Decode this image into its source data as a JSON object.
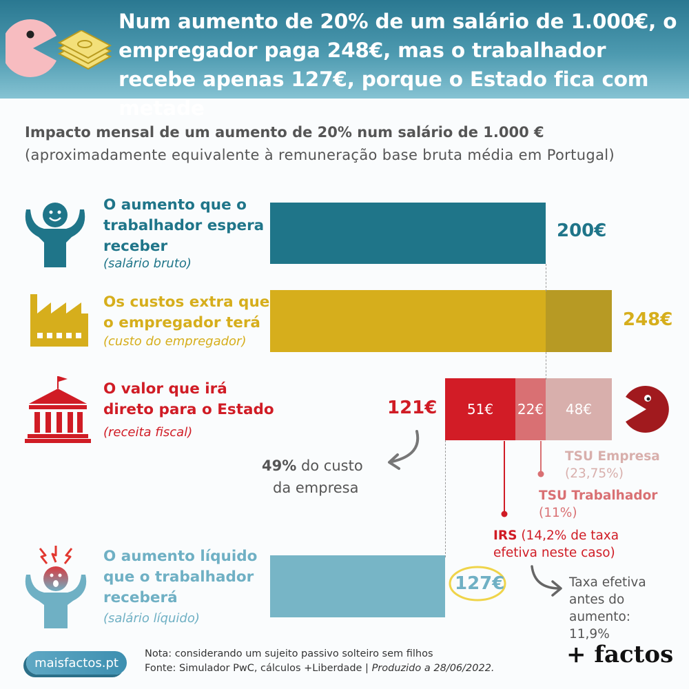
{
  "header": {
    "title": "Num aumento de 20% de um salário de 1.000€, o empregador paga 248€, mas o trabalhador recebe apenas 127€, porque o Estado fica com metade",
    "colors": {
      "from": "#2a7891",
      "to": "#86c3d3"
    }
  },
  "chart_data": {
    "type": "bar",
    "title": "Impacto mensal de um aumento de 20% num salário de 1.000 €",
    "subtitle": "(aproximadamente equivalente à remuneração base bruta média em Portugal)",
    "unit": "€",
    "rows": [
      {
        "label": "O aumento que o trabalhador espera receber",
        "sublabel": "(salário bruto)",
        "value": 200,
        "value_label": "200€",
        "color": "#1f7589"
      },
      {
        "label": "Os custos extra que o empregador terá",
        "sublabel": "(custo do empregador)",
        "value": 248,
        "value_label": "248€",
        "color": "#d6ae1c",
        "segments": [
          {
            "value": 200,
            "color": "#d6ae1c"
          },
          {
            "value": 48,
            "color": "#b79a24"
          }
        ]
      },
      {
        "label": "O valor que irá direto para o Estado",
        "sublabel": "(receita fiscal)",
        "value": 121,
        "value_label": "121€",
        "color": "#d01c25",
        "segments": [
          {
            "value": 51,
            "label": "51€",
            "color": "#d21c26"
          },
          {
            "value": 22,
            "label": "22€",
            "color": "#d97073"
          },
          {
            "value": 48,
            "label": "48€",
            "color": "#d8afac"
          }
        ]
      },
      {
        "label": "O aumento líquido que o trabalhador receberá",
        "sublabel": "(salário líquido)",
        "value": 127,
        "value_label": "127€",
        "color": "#77b5c6"
      }
    ],
    "annotations": {
      "share_pct": "49%",
      "share_text": " do custo",
      "share_text2": "da empresa",
      "tsu_empresa": "TSU Empresa",
      "tsu_empresa_rate": "(23,75%)",
      "tsu_trab": "TSU Trabalhador",
      "tsu_trab_rate": "(11%)",
      "irs": "IRS",
      "irs_rate": " (14,2% de taxa",
      "irs_rate2": "efetiva neste caso)",
      "prior_rate": "Taxa efetiva antes do aumento: 11,9%"
    }
  },
  "footer": {
    "site": "maisfactos.pt",
    "note": "Nota: considerando um sujeito passivo solteiro sem filhos",
    "source": "Fonte: Simulador PwC, cálculos +Liberdade | ",
    "produced": "Produzido a 28/06/2022.",
    "brand": "+ factos"
  },
  "icons": [
    "pacman-icon",
    "money-stack-icon",
    "happy-person-icon",
    "factory-icon",
    "government-building-icon",
    "stressed-person-icon",
    "pacman-eating-icon"
  ]
}
